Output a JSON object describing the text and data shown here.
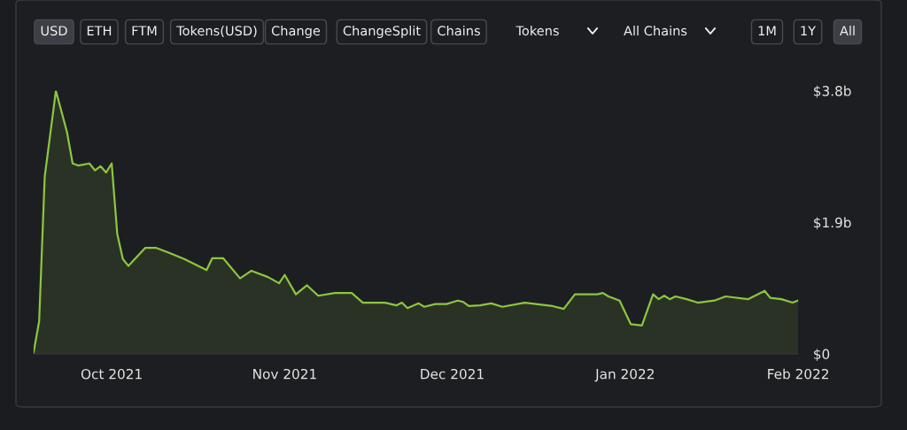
{
  "chart_data": {
    "type": "area",
    "x": [
      "2021-09-17",
      "2021-09-18",
      "2021-09-19",
      "2021-09-21",
      "2021-09-23",
      "2021-09-24",
      "2021-09-25",
      "2021-09-27",
      "2021-09-28",
      "2021-09-29",
      "2021-09-30",
      "2021-10-01",
      "2021-10-02",
      "2021-10-03",
      "2021-10-04",
      "2021-10-07",
      "2021-10-09",
      "2021-10-11",
      "2021-10-14",
      "2021-10-16",
      "2021-10-18",
      "2021-10-19",
      "2021-10-21",
      "2021-10-24",
      "2021-10-26",
      "2021-10-29",
      "2021-10-31",
      "2021-11-01",
      "2021-11-03",
      "2021-11-05",
      "2021-11-07",
      "2021-11-10",
      "2021-11-13",
      "2021-11-15",
      "2021-11-19",
      "2021-11-21",
      "2021-11-22",
      "2021-11-23",
      "2021-11-25",
      "2021-11-26",
      "2021-11-28",
      "2021-11-30",
      "2021-12-02",
      "2021-12-03",
      "2021-12-04",
      "2021-12-06",
      "2021-12-08",
      "2021-12-10",
      "2021-12-14",
      "2021-12-19",
      "2021-12-21",
      "2021-12-23",
      "2021-12-27",
      "2021-12-28",
      "2021-12-29",
      "2021-12-31",
      "2022-01-02",
      "2022-01-04",
      "2022-01-06",
      "2022-01-07",
      "2022-01-08",
      "2022-01-09",
      "2022-01-10",
      "2022-01-12",
      "2022-01-14",
      "2022-01-17",
      "2022-01-19",
      "2022-01-23",
      "2022-01-26",
      "2022-01-27",
      "2022-01-29",
      "2022-01-31",
      "2022-02-01"
    ],
    "series": [
      {
        "color": "#8cc63f",
        "values": [
          0.02,
          0.47,
          2.56,
          3.8,
          3.2,
          2.75,
          2.72,
          2.75,
          2.65,
          2.71,
          2.62,
          2.75,
          1.73,
          1.37,
          1.27,
          1.53,
          1.53,
          1.47,
          1.37,
          1.29,
          1.21,
          1.38,
          1.38,
          1.09,
          1.2,
          1.11,
          1.02,
          1.14,
          0.86,
          0.99,
          0.84,
          0.88,
          0.88,
          0.74,
          0.74,
          0.7,
          0.74,
          0.66,
          0.73,
          0.68,
          0.72,
          0.72,
          0.77,
          0.75,
          0.69,
          0.7,
          0.73,
          0.68,
          0.74,
          0.69,
          0.65,
          0.86,
          0.86,
          0.88,
          0.83,
          0.77,
          0.43,
          0.41,
          0.86,
          0.79,
          0.84,
          0.79,
          0.83,
          0.79,
          0.74,
          0.77,
          0.83,
          0.79,
          0.91,
          0.81,
          0.79,
          0.74,
          0.77
        ]
      }
    ],
    "xticks": [
      {
        "value": "2021-10-01",
        "label": "Oct 2021"
      },
      {
        "value": "2021-11-01",
        "label": "Nov 2021"
      },
      {
        "value": "2021-12-01",
        "label": "Dec 2021"
      },
      {
        "value": "2022-01-01",
        "label": "Jan 2022"
      },
      {
        "value": "2022-02-01",
        "label": "Feb 2022"
      }
    ],
    "xlim": [
      "2021-09-17",
      "2022-02-01"
    ],
    "ylim": [
      0,
      3.8
    ],
    "yticks": [
      {
        "value": 0,
        "label": "$0"
      },
      {
        "value": 1.9,
        "label": "$1.9b"
      },
      {
        "value": 3.8,
        "label": "$3.8b"
      }
    ],
    "grid": false,
    "legend": false,
    "annotations": [
      "USD",
      "ETH",
      "FTM",
      "Tokens(USD)",
      "Change",
      "ChangeSplit",
      "Chains",
      "Tokens",
      "All Chains",
      "1M",
      "1Y",
      "All"
    ]
  }
}
